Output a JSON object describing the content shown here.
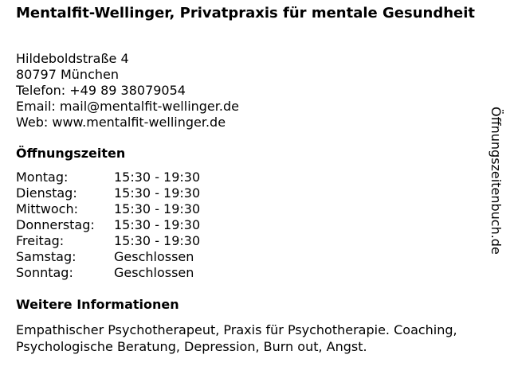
{
  "title": "Mentalfit-Wellinger, Privatpraxis für mentale Gesundheit",
  "address": {
    "street": "Hildeboldstraße 4",
    "city": "80797 München",
    "phone": "Telefon: +49 89 38079054",
    "email": "Email: mail@mentalfit-wellinger.de",
    "web": "Web: www.mentalfit-wellinger.de"
  },
  "hours": {
    "heading": "Öffnungszeiten",
    "rows": [
      {
        "day": "Montag:",
        "time": "15:30 - 19:30"
      },
      {
        "day": "Dienstag:",
        "time": "15:30 - 19:30"
      },
      {
        "day": "Mittwoch:",
        "time": "15:30 - 19:30"
      },
      {
        "day": "Donnerstag:",
        "time": "15:30 - 19:30"
      },
      {
        "day": "Freitag:",
        "time": "15:30 - 19:30"
      },
      {
        "day": "Samstag:",
        "time": "Geschlossen"
      },
      {
        "day": "Sonntag:",
        "time": "Geschlossen"
      }
    ]
  },
  "info": {
    "heading": "Weitere Informationen",
    "text": "Empathischer Psychotherapeut, Praxis für Psychotherapie. Coaching, Psychologische Beratung, Depression, Burn out, Angst."
  },
  "watermark": "Öffnungszeitenbuch.de"
}
